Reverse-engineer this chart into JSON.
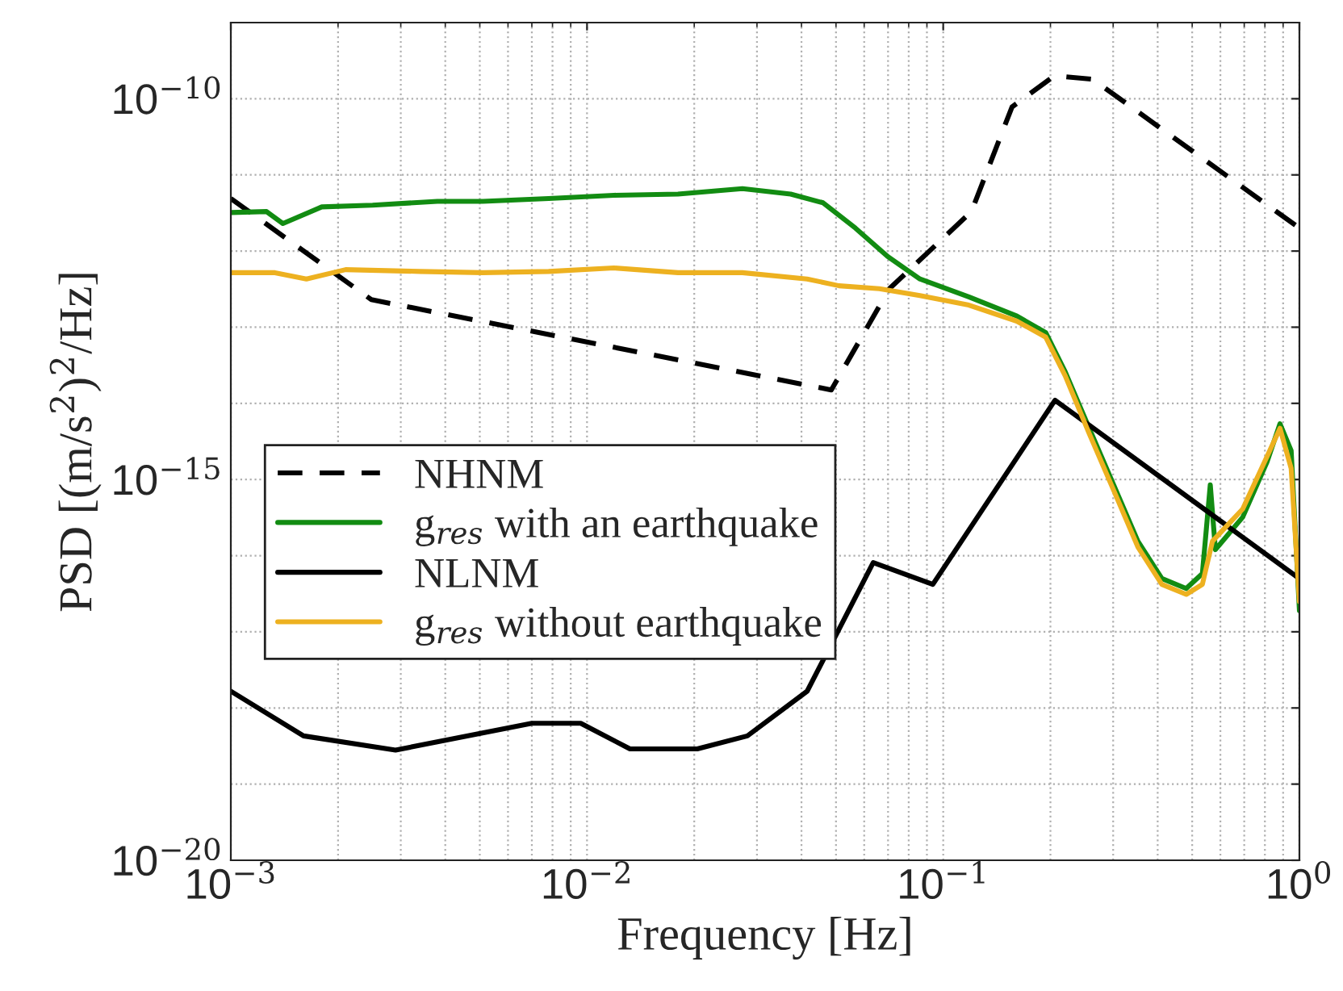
{
  "chart_data": {
    "type": "line",
    "xlabel": "Frequency [Hz]",
    "ylabel": "PSD [(m/s$^{2}$)$^{2}$/Hz]",
    "log": "xy",
    "grid": true,
    "legend": "bottom left",
    "xlim": [
      0.001,
      1
    ],
    "ylim": [
      1e-20,
      1e-09
    ],
    "xticks": [
      {
        "value": 0.001,
        "label": "10$^{−3}$"
      },
      {
        "value": 0.01,
        "label": "10$^{−2}$"
      },
      {
        "value": 0.1,
        "label": "10$^{−1}$"
      },
      {
        "value": 1,
        "label": "10$^{0}$"
      }
    ],
    "yticks": [
      {
        "value": 1e-20,
        "label": "10$^{−20}$"
      },
      {
        "value": 1e-19,
        "label": null
      },
      {
        "value": 1e-18,
        "label": null
      },
      {
        "value": 1e-17,
        "label": null
      },
      {
        "value": 1e-16,
        "label": null
      },
      {
        "value": 1e-15,
        "label": "10$^{−15}$"
      },
      {
        "value": 1e-14,
        "label": null
      },
      {
        "value": 1e-13,
        "label": null
      },
      {
        "value": 1e-12,
        "label": null
      },
      {
        "value": 1e-11,
        "label": null
      },
      {
        "value": 1e-10,
        "label": "10$^{−10}$"
      }
    ],
    "series": [
      {
        "name": "NHNM",
        "color": "#000000",
        "line_style": "dashed",
        "x": [
          0.001,
          0.00248,
          0.0485,
          0.0706,
          0.12,
          0.156,
          0.205,
          0.263,
          1.0
        ],
        "values": [
          4.9e-12,
          2.3e-13,
          1.5e-14,
          3.2e-13,
          3.3e-12,
          7.8e-11,
          2e-10,
          1.8e-10,
          2e-12
        ]
      },
      {
        "name": "g$_{res}$ with an earthquake",
        "color": "#128c12",
        "line_style": "solid",
        "x": [
          0.001,
          0.00126,
          0.0014,
          0.0018,
          0.0025,
          0.0038,
          0.0051,
          0.0078,
          0.0119,
          0.018,
          0.0273,
          0.0373,
          0.046,
          0.0567,
          0.0698,
          0.086,
          0.118,
          0.161,
          0.194,
          0.22,
          0.257,
          0.301,
          0.352,
          0.411,
          0.481,
          0.534,
          0.562,
          0.581,
          0.693,
          0.811,
          0.882,
          0.948,
          1.0
        ],
        "values": [
          3.2e-12,
          3.3e-12,
          2.3e-12,
          3.8e-12,
          4e-12,
          4.5e-12,
          4.5e-12,
          4.9e-12,
          5.4e-12,
          5.6e-12,
          6.6e-12,
          5.6e-12,
          4.3e-12,
          2e-12,
          8.5e-13,
          4.3e-13,
          2.5e-13,
          1.4e-13,
          8.5e-14,
          2.6e-14,
          4.7e-15,
          8.5e-16,
          1.55e-16,
          5e-17,
          3.7e-17,
          5.8e-17,
          8.5e-16,
          1.2e-16,
          3.2e-16,
          1.7e-15,
          5.4e-15,
          2.4e-15,
          1.9e-17
        ]
      },
      {
        "name": "NLNM",
        "color": "#000000",
        "line_style": "solid",
        "x": [
          0.001,
          0.0016,
          0.0029,
          0.007,
          0.0096,
          0.0132,
          0.0204,
          0.0282,
          0.0415,
          0.0636,
          0.0935,
          0.206,
          1.0
        ],
        "values": [
          1.66e-18,
          4.3e-19,
          2.8e-19,
          6.3e-19,
          6.3e-19,
          2.9e-19,
          2.9e-19,
          4.3e-19,
          1.66e-18,
          8.1e-17,
          4.2e-17,
          1.1e-14,
          5e-17
        ]
      },
      {
        "name": "g$_{res}$ without earthquake",
        "color": "#edb120",
        "line_style": "solid",
        "x": [
          0.001,
          0.00133,
          0.00163,
          0.0021,
          0.0034,
          0.0051,
          0.0078,
          0.0119,
          0.018,
          0.0273,
          0.0415,
          0.051,
          0.0662,
          0.086,
          0.118,
          0.161,
          0.194,
          0.22,
          0.257,
          0.301,
          0.352,
          0.411,
          0.481,
          0.534,
          0.57,
          0.693,
          0.811,
          0.882,
          0.948,
          1.0
        ],
        "values": [
          5.2e-13,
          5.2e-13,
          4.3e-13,
          5.7e-13,
          5.4e-13,
          5.2e-13,
          5.4e-13,
          6e-13,
          5.2e-13,
          5.2e-13,
          4.3e-13,
          3.5e-13,
          3.2e-13,
          2.6e-13,
          1.95e-13,
          1.2e-13,
          7.4e-14,
          2.3e-14,
          4e-15,
          7.2e-16,
          1.3e-16,
          4.2e-17,
          3.1e-17,
          4.2e-17,
          1.55e-16,
          4.1e-16,
          2e-15,
          4.7e-15,
          1.4e-15,
          2.5e-17
        ]
      }
    ]
  }
}
